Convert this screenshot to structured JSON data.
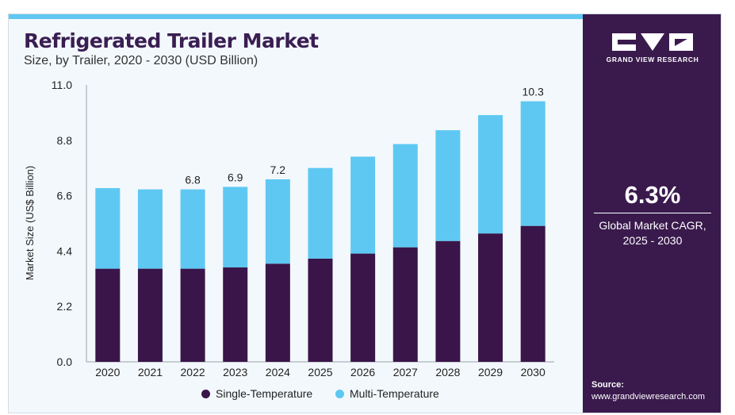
{
  "header": {
    "title": "Refrigerated Trailer Market",
    "subtitle": "Size, by Trailer, 2020 - 2030 (USD Billion)"
  },
  "sidebar": {
    "brand": "GRAND VIEW RESEARCH",
    "cagr_value": "6.3%",
    "cagr_label_line1": "Global Market CAGR,",
    "cagr_label_line2": "2025 - 2030",
    "source_label": "Source:",
    "source_url": "www.grandviewresearch.com"
  },
  "colors": {
    "single": "#3a1549",
    "multi": "#5ec8f2",
    "sidebar": "#3a1a4d",
    "title": "#3a1e52"
  },
  "chart_data": {
    "type": "bar",
    "stacked": true,
    "categories": [
      "2020",
      "2021",
      "2022",
      "2023",
      "2024",
      "2025",
      "2026",
      "2027",
      "2028",
      "2029",
      "2030"
    ],
    "series": [
      {
        "name": "Single-Temperature",
        "values": [
          3.7,
          3.7,
          3.7,
          3.75,
          3.9,
          4.1,
          4.3,
          4.55,
          4.8,
          5.1,
          5.4
        ]
      },
      {
        "name": "Multi-Temperature",
        "values": [
          3.2,
          3.15,
          3.15,
          3.2,
          3.35,
          3.6,
          3.85,
          4.1,
          4.4,
          4.7,
          4.95
        ]
      }
    ],
    "totals_labels": [
      "",
      "",
      "6.8",
      "6.9",
      "7.2",
      "",
      "",
      "",
      "",
      "",
      "10.3"
    ],
    "ylabel": "Market Size (US$ Billion)",
    "xlabel": "",
    "ylim": [
      0,
      11
    ],
    "yticks": [
      "0.0",
      "2.2",
      "4.4",
      "6.6",
      "8.8",
      "11.0"
    ],
    "grid": false,
    "legend": "bottom"
  }
}
